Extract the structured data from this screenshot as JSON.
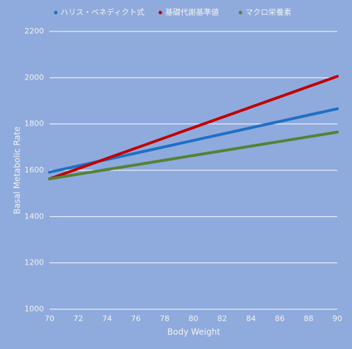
{
  "chart_data": {
    "type": "line",
    "x_label": "Body Weight",
    "y_label": "Basal Metabolic Rate",
    "x": [
      70,
      90
    ],
    "series": [
      {
        "name": "ハリス・ベネディクト式",
        "color": "#1f6fc5",
        "values": [
          1592,
          1866
        ]
      },
      {
        "name": "基礎代謝基準値",
        "color": "#c00000",
        "values": [
          1563,
          2006
        ]
      },
      {
        "name": "マクロ栄養素",
        "color": "#548235",
        "values": [
          1563,
          1765
        ]
      }
    ],
    "xlim": [
      70,
      90
    ],
    "xticks": [
      70,
      72,
      74,
      76,
      78,
      80,
      82,
      84,
      86,
      88,
      90
    ],
    "ylim": [
      1000,
      2200
    ],
    "yticks": [
      1000,
      1200,
      1400,
      1600,
      1800,
      2000,
      2200
    ],
    "grid": true,
    "legend": "top",
    "background": "#8faadc"
  }
}
